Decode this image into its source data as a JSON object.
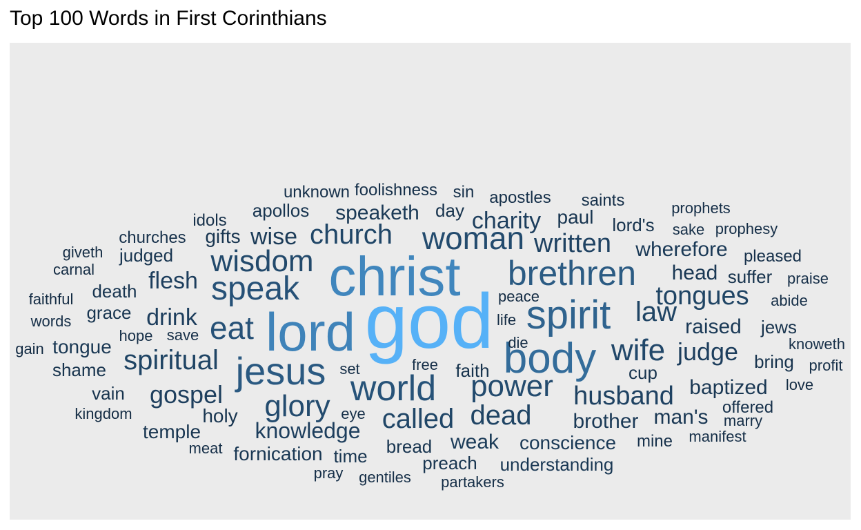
{
  "chart_data": {
    "type": "wordcloud",
    "title": "Top 100 Words in First Corinthians",
    "background": "#ebebeb",
    "color_low": "#132b43",
    "color_high": "#56b1f7",
    "words": [
      {
        "word": "god",
        "freq": 100
      },
      {
        "word": "christ",
        "freq": 68
      },
      {
        "word": "lord",
        "freq": 66
      },
      {
        "word": "body",
        "freq": 50
      },
      {
        "word": "spirit",
        "freq": 44
      },
      {
        "word": "brethren",
        "freq": 39
      },
      {
        "word": "jesus",
        "freq": 38
      },
      {
        "word": "world",
        "freq": 34
      },
      {
        "word": "speak",
        "freq": 33
      },
      {
        "word": "eat",
        "freq": 33
      },
      {
        "word": "power",
        "freq": 29
      },
      {
        "word": "glory",
        "freq": 29
      },
      {
        "word": "woman",
        "freq": 29
      },
      {
        "word": "wisdom",
        "freq": 28
      },
      {
        "word": "wife",
        "freq": 27
      },
      {
        "word": "called",
        "freq": 26
      },
      {
        "word": "church",
        "freq": 26
      },
      {
        "word": "dead",
        "freq": 25
      },
      {
        "word": "tongues",
        "freq": 25
      },
      {
        "word": "spiritual",
        "freq": 25
      },
      {
        "word": "law",
        "freq": 25
      },
      {
        "word": "husband",
        "freq": 24
      },
      {
        "word": "written",
        "freq": 24
      },
      {
        "word": "knowledge",
        "freq": 22
      },
      {
        "word": "gospel",
        "freq": 22
      },
      {
        "word": "charity",
        "freq": 22
      },
      {
        "word": "judge",
        "freq": 22
      },
      {
        "word": "flesh",
        "freq": 22
      },
      {
        "word": "drink",
        "freq": 22
      },
      {
        "word": "weak",
        "freq": 20
      },
      {
        "word": "wise",
        "freq": 20
      },
      {
        "word": "raised",
        "freq": 19
      },
      {
        "word": "conscience",
        "freq": 19
      },
      {
        "word": "wherefore",
        "freq": 19
      },
      {
        "word": "speaketh",
        "freq": 19
      },
      {
        "word": "brother",
        "freq": 19
      },
      {
        "word": "baptized",
        "freq": 18
      },
      {
        "word": "head",
        "freq": 18
      },
      {
        "word": "man's",
        "freq": 18
      },
      {
        "word": "fornication",
        "freq": 18
      },
      {
        "word": "understanding",
        "freq": 18
      },
      {
        "word": "tongue",
        "freq": 18
      },
      {
        "word": "apollos",
        "freq": 17
      },
      {
        "word": "gifts",
        "freq": 17
      },
      {
        "word": "paul",
        "freq": 17
      },
      {
        "word": "temple",
        "freq": 17
      },
      {
        "word": "preach",
        "freq": 17
      },
      {
        "word": "bread",
        "freq": 17
      },
      {
        "word": "time",
        "freq": 17
      },
      {
        "word": "holy",
        "freq": 17
      },
      {
        "word": "grace",
        "freq": 17
      },
      {
        "word": "death",
        "freq": 17
      },
      {
        "word": "judged",
        "freq": 17
      },
      {
        "word": "shame",
        "freq": 16
      },
      {
        "word": "faith",
        "freq": 16
      },
      {
        "word": "cup",
        "freq": 16
      },
      {
        "word": "suffer",
        "freq": 16
      },
      {
        "word": "bring",
        "freq": 16
      },
      {
        "word": "jews",
        "freq": 16
      },
      {
        "word": "day",
        "freq": 16
      },
      {
        "word": "lord's",
        "freq": 16
      },
      {
        "word": "vain",
        "freq": 16
      },
      {
        "word": "offered",
        "freq": 15
      },
      {
        "word": "pleased",
        "freq": 15
      },
      {
        "word": "apostles",
        "freq": 15
      },
      {
        "word": "saints",
        "freq": 15
      },
      {
        "word": "foolishness",
        "freq": 15
      },
      {
        "word": "unknown",
        "freq": 15
      },
      {
        "word": "mine",
        "freq": 15
      },
      {
        "word": "idols",
        "freq": 15
      },
      {
        "word": "churches",
        "freq": 15
      },
      {
        "word": "sin",
        "freq": 15
      },
      {
        "word": "meat",
        "freq": 14
      },
      {
        "word": "eye",
        "freq": 14
      },
      {
        "word": "save",
        "freq": 14
      },
      {
        "word": "hope",
        "freq": 14
      },
      {
        "word": "set",
        "freq": 14
      },
      {
        "word": "gentiles",
        "freq": 14
      },
      {
        "word": "pray",
        "freq": 14
      },
      {
        "word": "partakers",
        "freq": 14
      },
      {
        "word": "free",
        "freq": 14
      },
      {
        "word": "manifest",
        "freq": 14
      },
      {
        "word": "marry",
        "freq": 14
      },
      {
        "word": "prophets",
        "freq": 14
      },
      {
        "word": "sake",
        "freq": 14
      },
      {
        "word": "prophesy",
        "freq": 14
      },
      {
        "word": "abide",
        "freq": 14
      },
      {
        "word": "praise",
        "freq": 14
      },
      {
        "word": "knoweth",
        "freq": 14
      },
      {
        "word": "profit",
        "freq": 14
      },
      {
        "word": "love",
        "freq": 13
      },
      {
        "word": "peace",
        "freq": 13
      },
      {
        "word": "life",
        "freq": 13
      },
      {
        "word": "die",
        "freq": 13
      },
      {
        "word": "words",
        "freq": 14
      },
      {
        "word": "faithful",
        "freq": 13
      },
      {
        "word": "carnal",
        "freq": 13
      },
      {
        "word": "giveth",
        "freq": 13
      },
      {
        "word": "gain",
        "freq": 13
      },
      {
        "word": "kingdom",
        "freq": 13
      }
    ]
  }
}
